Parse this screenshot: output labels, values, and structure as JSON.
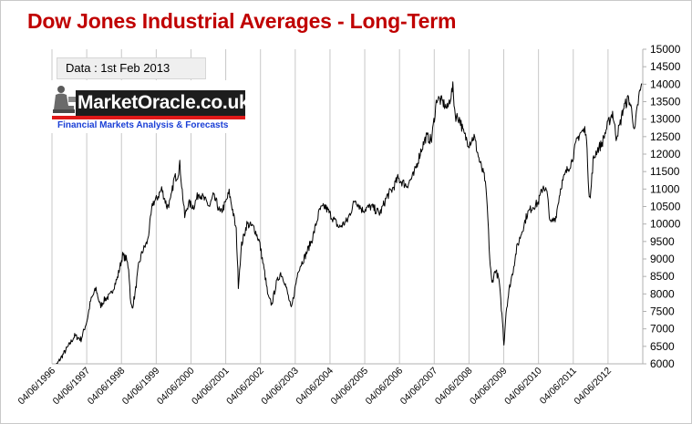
{
  "chart_data": {
    "type": "line",
    "title": "Dow Jones Industrial Averages  - Long-Term",
    "annotation": "Data : 1st Feb 2013",
    "xlabel": "",
    "ylabel": "",
    "ylim": [
      6000,
      15000
    ],
    "y_ticks": [
      "6000",
      "6500",
      "7000",
      "7500",
      "8000",
      "8500",
      "9000",
      "9500",
      "10000",
      "10500",
      "11000",
      "11500",
      "12000",
      "12500",
      "13000",
      "13500",
      "14000",
      "14500",
      "15000"
    ],
    "x_ticks": [
      "04/06/1996",
      "04/06/1997",
      "04/06/1998",
      "04/06/1999",
      "04/06/2000",
      "04/06/2001",
      "04/06/2002",
      "04/06/2003",
      "04/06/2004",
      "04/06/2005",
      "04/06/2006",
      "04/06/2007",
      "04/06/2008",
      "04/06/2009",
      "04/06/2010",
      "04/06/2011",
      "04/06/2012"
    ],
    "grid": "vertical",
    "y_axis_side": "right",
    "series": [
      {
        "color": "#000000",
        "x": [
          1996.46,
          1996.7,
          1996.95,
          1997.1,
          1997.28,
          1997.45,
          1997.55,
          1997.7,
          1997.82,
          1997.95,
          1998.1,
          1998.3,
          1998.45,
          1998.55,
          1998.62,
          1998.68,
          1998.72,
          1998.8,
          1998.9,
          1999.0,
          1999.15,
          1999.3,
          1999.4,
          1999.55,
          1999.7,
          1999.8,
          1999.9,
          2000.0,
          2000.06,
          2000.2,
          2000.3,
          2000.45,
          2000.6,
          2000.75,
          2000.9,
          2001.0,
          2001.1,
          2001.2,
          2001.35,
          2001.45,
          2001.55,
          2001.65,
          2001.71,
          2001.8,
          2001.95,
          2002.15,
          2002.3,
          2002.45,
          2002.55,
          2002.65,
          2002.78,
          2002.9,
          2003.0,
          2003.1,
          2003.2,
          2003.4,
          2003.6,
          2003.8,
          2004.0,
          2004.15,
          2004.35,
          2004.55,
          2004.78,
          2005.0,
          2005.2,
          2005.45,
          2005.7,
          2005.9,
          2006.05,
          2006.2,
          2006.45,
          2006.65,
          2006.85,
          2007.0,
          2007.15,
          2007.3,
          2007.45,
          2007.6,
          2007.75,
          2007.82,
          2007.95,
          2008.05,
          2008.2,
          2008.35,
          2008.5,
          2008.65,
          2008.72,
          2008.79,
          2008.85,
          2008.95,
          2009.05,
          2009.15,
          2009.19,
          2009.25,
          2009.35,
          2009.45,
          2009.55,
          2009.7,
          2009.85,
          2010.0,
          2010.15,
          2010.3,
          2010.4,
          2010.5,
          2010.65,
          2010.8,
          2010.95,
          2011.1,
          2011.25,
          2011.33,
          2011.5,
          2011.58,
          2011.62,
          2011.7,
          2011.8,
          2011.95,
          2012.1,
          2012.25,
          2012.35,
          2012.45,
          2012.55,
          2012.7,
          2012.8,
          2012.87,
          2012.92,
          2013.0,
          2013.08
        ],
        "y": [
          5750,
          6150,
          6550,
          6800,
          6700,
          7250,
          7800,
          8150,
          7650,
          7850,
          7950,
          8450,
          9100,
          9000,
          8750,
          7700,
          7600,
          8000,
          8800,
          9200,
          9500,
          10600,
          10700,
          11000,
          10500,
          10650,
          11300,
          11400,
          11700,
          10200,
          10600,
          10500,
          10900,
          10700,
          10500,
          10800,
          10600,
          10300,
          10600,
          10900,
          10400,
          9800,
          8250,
          9400,
          10000,
          9900,
          9500,
          8600,
          7900,
          7700,
          8300,
          8600,
          8400,
          8000,
          7550,
          8700,
          9100,
          9600,
          10400,
          10500,
          10200,
          9900,
          10100,
          10700,
          10400,
          10500,
          10300,
          10800,
          11000,
          11300,
          11100,
          11400,
          12100,
          12500,
          12400,
          13600,
          13500,
          13300,
          13900,
          13100,
          13000,
          12600,
          12300,
          12500,
          11800,
          11300,
          10500,
          9000,
          8300,
          8700,
          8400,
          7200,
          6550,
          7500,
          8200,
          8700,
          9300,
          9800,
          10300,
          10500,
          10600,
          11100,
          10900,
          10000,
          10200,
          11100,
          11500,
          11800,
          12400,
          12600,
          12700,
          11000,
          10700,
          11800,
          12100,
          12300,
          12800,
          13200,
          12500,
          12800,
          13300,
          13600,
          13200,
          12600,
          13100,
          13700,
          14000
        ]
      }
    ]
  },
  "logo": {
    "name": "MarketOracle.co.uk",
    "tagline": "Financial Markets Analysis & Forecasts",
    "colors": {
      "text_bg": "#1d1d1d",
      "bar": "#e01818",
      "tagline": "#1a3fd6"
    }
  },
  "colors": {
    "title": "#c00000",
    "grid": "#c8c8c8",
    "line": "#000000"
  }
}
